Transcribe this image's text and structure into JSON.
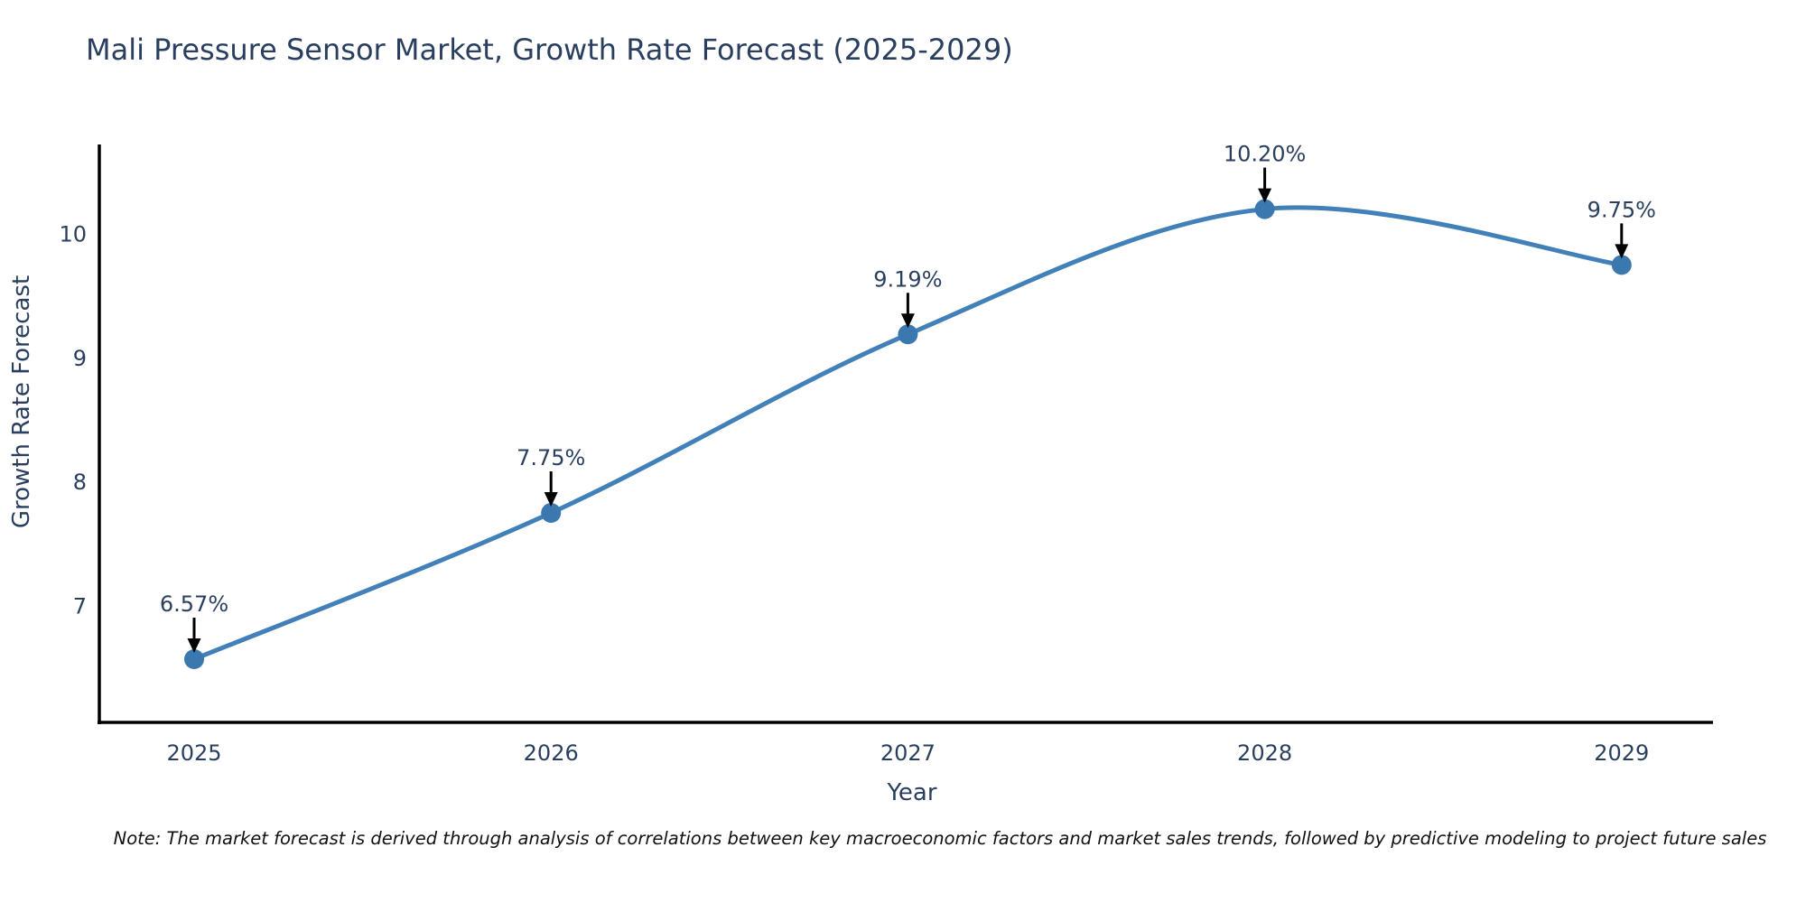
{
  "chart_data": {
    "type": "line",
    "title": "Mali Pressure Sensor Market, Growth Rate Forecast (2025-2029)",
    "xlabel": "Year",
    "ylabel": "Growth Rate Forecast",
    "categories": [
      "2025",
      "2026",
      "2027",
      "2028",
      "2029"
    ],
    "values": [
      6.57,
      7.75,
      9.19,
      10.2,
      9.75
    ],
    "point_labels": [
      "6.57%",
      "7.75%",
      "9.19%",
      "10.20%",
      "9.75%"
    ],
    "series_name": "Growth Rate Forecast",
    "y_ticks": [
      7,
      8,
      9,
      10
    ],
    "ylim": [
      6.06,
      10.72
    ],
    "line_shape": "spline",
    "grid": false,
    "legend_position": "none",
    "annotation_arrows": true,
    "note": "Note: The market forecast is derived through analysis of correlations between key macroeconomic factors and market sales trends, followed by predictive modeling to project future sales",
    "colors": {
      "line": "#4180b8",
      "marker": "#3c78b0",
      "axis": "#000000",
      "text": "#2a3f5f",
      "annotation_arrow": "#000000",
      "note_text": "#111111",
      "background": "#ffffff"
    }
  }
}
